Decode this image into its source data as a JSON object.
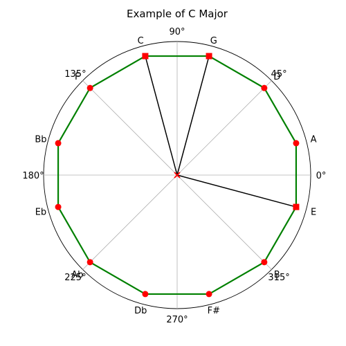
{
  "chart_data": {
    "type": "polar",
    "title": "Example of C Major",
    "angle_ticks": [
      "0°",
      "45°",
      "90°",
      "135°",
      "180°",
      "225°",
      "270°",
      "315°"
    ],
    "angle_tick_values_deg": [
      0,
      45,
      90,
      135,
      180,
      225,
      270,
      315
    ],
    "radius_max": 1.0,
    "grid": true,
    "outline": {
      "color": "#008000",
      "marker_color": "#ff0000",
      "points": [
        {
          "note": "A",
          "angle_deg": 15,
          "r": 1.0,
          "marker": "circle"
        },
        {
          "note": "D",
          "angle_deg": 45,
          "r": 1.0,
          "marker": "circle"
        },
        {
          "note": "G",
          "angle_deg": 75,
          "r": 1.0,
          "marker": "square"
        },
        {
          "note": "C",
          "angle_deg": 105,
          "r": 1.0,
          "marker": "square"
        },
        {
          "note": "F",
          "angle_deg": 135,
          "r": 1.0,
          "marker": "circle"
        },
        {
          "note": "Bb",
          "angle_deg": 165,
          "r": 1.0,
          "marker": "circle"
        },
        {
          "note": "Eb",
          "angle_deg": 195,
          "r": 1.0,
          "marker": "circle"
        },
        {
          "note": "Ab",
          "angle_deg": 225,
          "r": 1.0,
          "marker": "circle"
        },
        {
          "note": "Db",
          "angle_deg": 255,
          "r": 1.0,
          "marker": "circle"
        },
        {
          "note": "F#",
          "angle_deg": 285,
          "r": 1.0,
          "marker": "circle"
        },
        {
          "note": "B",
          "angle_deg": 315,
          "r": 1.0,
          "marker": "circle"
        },
        {
          "note": "E",
          "angle_deg": 345,
          "r": 1.0,
          "marker": "square"
        }
      ]
    },
    "chord": {
      "color": "#000000",
      "center_marker": "x",
      "center_marker_color": "#ff0000",
      "notes": [
        "C",
        "G",
        "E"
      ],
      "angles_deg": [
        105,
        75,
        345
      ]
    }
  }
}
